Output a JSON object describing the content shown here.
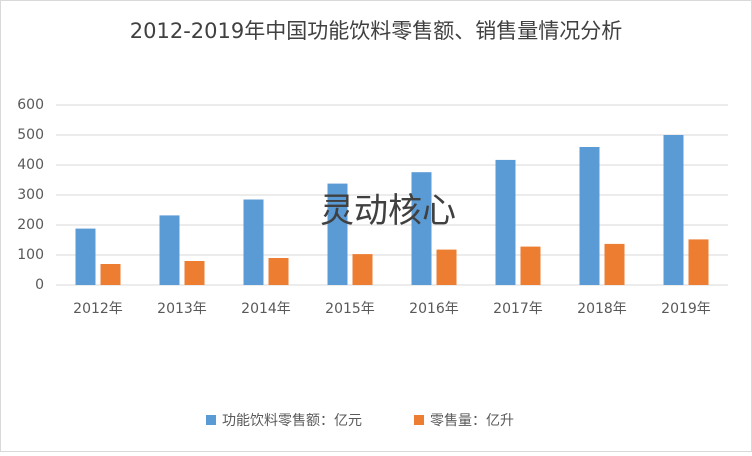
{
  "chart_data": {
    "type": "bar",
    "title": "2012-2019年中国功能饮料零售额、销售量情况分析",
    "categories": [
      "2012年",
      "2013年",
      "2014年",
      "2015年",
      "2016年",
      "2017年",
      "2018年",
      "2019年"
    ],
    "series": [
      {
        "name": "功能饮料零售额：亿元",
        "color": "#5b9bd5",
        "values": [
          188,
          232,
          285,
          338,
          376,
          417,
          460,
          500
        ]
      },
      {
        "name": "零售量：亿升",
        "color": "#ed7d31",
        "values": [
          70,
          80,
          90,
          103,
          118,
          128,
          137,
          152
        ]
      }
    ],
    "ylim": [
      0,
      600
    ],
    "yticks": [
      0,
      100,
      200,
      300,
      400,
      500,
      600
    ],
    "grid": true,
    "legend": "bottom",
    "annotation": "灵动核心"
  }
}
